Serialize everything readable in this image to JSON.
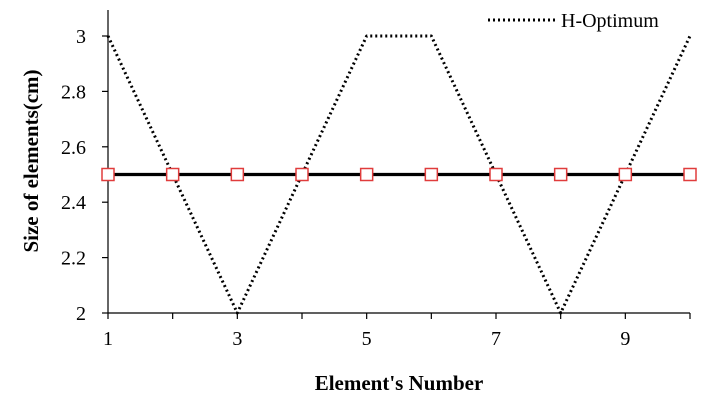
{
  "chart_data": {
    "type": "line",
    "xlabel": "Element's Number",
    "ylabel": "Size of elements(cm)",
    "xlim": [
      1,
      10
    ],
    "ylim": [
      2,
      3
    ],
    "x_ticks": [
      "1",
      "3",
      "5",
      "7",
      "9"
    ],
    "y_ticks": [
      "2",
      "2.2",
      "2.4",
      "2.6",
      "2.8",
      "3"
    ],
    "x": [
      1,
      2,
      3,
      4,
      5,
      6,
      7,
      8,
      9,
      10
    ],
    "grid": false,
    "legend_position": "top-right",
    "series": [
      {
        "name": "H-Optimum",
        "values": [
          3,
          2.5,
          2,
          2.5,
          3,
          3,
          2.5,
          2,
          2.5,
          3
        ],
        "style": "dotted",
        "color": "#000000",
        "in_legend": true
      },
      {
        "values": [
          2.5,
          2.5,
          2.5,
          2.5,
          2.5,
          2.5,
          2.5,
          2.5,
          2.5,
          2.5
        ],
        "style": "solid",
        "color": "#000000",
        "marker": "square",
        "marker_color": "#e03c3c",
        "in_legend": false
      }
    ]
  }
}
